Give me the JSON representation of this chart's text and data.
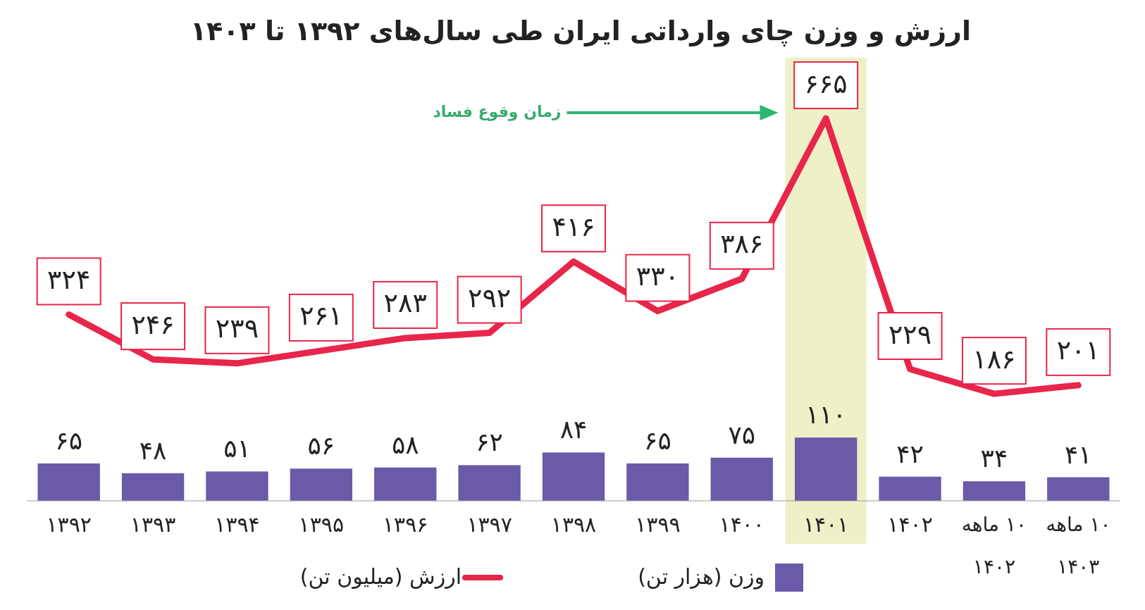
{
  "chart_data": {
    "type": "bar",
    "title": "ارزش و وزن چای وارداتی ایران طی سال‌های ۱۳۹۲ تا ۱۴۰۳",
    "categories": [
      "۱۳۹۲",
      "۱۳۹۳",
      "۱۳۹۴",
      "۱۳۹۵",
      "۱۳۹۶",
      "۱۳۹۷",
      "۱۳۹۸",
      "۱۳۹۹",
      "۱۴۰۰",
      "۱۴۰۱",
      "۱۴۰۲",
      "۱۰ ماهه ۱۴۰۲",
      "۱۰ ماهه ۱۴۰۳"
    ],
    "series": [
      {
        "name": "وزن (هزار تن)",
        "color": "#6a5aa8",
        "values": [
          65,
          48,
          51,
          56,
          58,
          62,
          84,
          65,
          75,
          110,
          42,
          34,
          41
        ],
        "value_labels": [
          "۶۵",
          "۴۸",
          "۵۱",
          "۵۶",
          "۵۸",
          "۶۲",
          "۸۴",
          "۶۵",
          "۷۵",
          "۱۱۰",
          "۴۲",
          "۳۴",
          "۴۱"
        ]
      },
      {
        "name": "ارزش (میلیون تن)",
        "type": "line",
        "color": "#e8254a",
        "values": [
          324,
          246,
          239,
          261,
          283,
          292,
          416,
          330,
          386,
          665,
          229,
          186,
          201
        ],
        "value_labels": [
          "۳۲۴",
          "۲۴۶",
          "۲۳۹",
          "۲۶۱",
          "۲۸۳",
          "۲۹۲",
          "۴۱۶",
          "۳۳۰",
          "۳۸۶",
          "۶۶۵",
          "۲۲۹",
          "۱۸۶",
          "۲۰۱"
        ]
      }
    ],
    "bands": [
      {
        "axis": "x",
        "from": "۱۴۰۱",
        "to": "۱۴۰۱",
        "color": "#eef0c8"
      }
    ],
    "annotations": [
      "زمان وقوع فساد"
    ],
    "legend": "bottom"
  }
}
